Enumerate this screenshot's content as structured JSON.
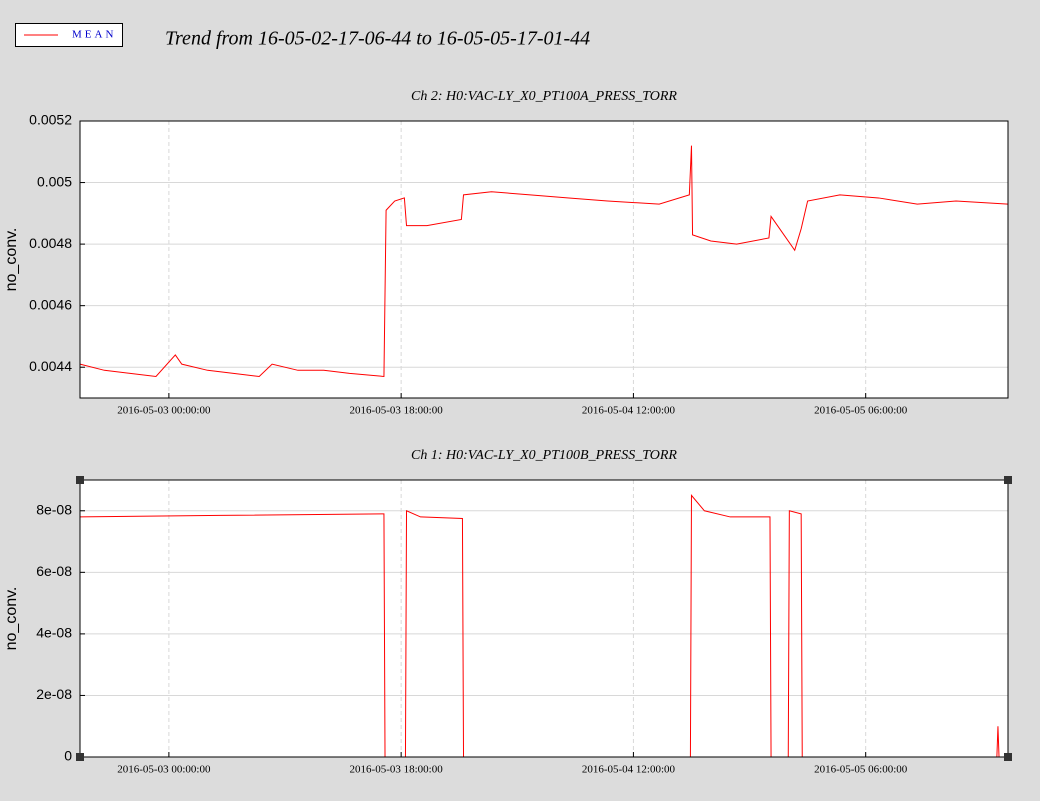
{
  "title": "Trend from 16-05-02-17-06-44 to 16-05-05-17-01-44",
  "legend": [
    {
      "name": "MEAN",
      "color": "#ff0000"
    }
  ],
  "chart_data": [
    {
      "type": "line",
      "title": "Ch 2: H0:VAC-LY_X0_PT100A_PRESS_TORR",
      "ylabel": "no_conv.",
      "grid": true,
      "xlim": [
        "2016-05-02 17:06:44",
        "2016-05-05 17:01:44"
      ],
      "xticks": [
        "2016-05-03 00:00:00",
        "2016-05-03 18:00:00",
        "2016-05-04 12:00:00",
        "2016-05-05 06:00:00"
      ],
      "ylim": [
        0.0043,
        0.0052
      ],
      "yticks": [
        0.0044,
        0.0046,
        0.0048,
        0.005,
        0.0052
      ],
      "x": [
        "2016-05-02 17:06:44",
        "2016-05-02 19:00:00",
        "2016-05-02 21:00:00",
        "2016-05-02 23:00:00",
        "2016-05-03 00:30:00",
        "2016-05-03 01:00:00",
        "2016-05-03 03:00:00",
        "2016-05-03 05:00:00",
        "2016-05-03 07:00:00",
        "2016-05-03 08:00:00",
        "2016-05-03 10:00:00",
        "2016-05-03 12:00:00",
        "2016-05-03 14:00:00",
        "2016-05-03 16:40:00",
        "2016-05-03 16:50:00",
        "2016-05-03 17:30:00",
        "2016-05-03 18:15:00",
        "2016-05-03 18:25:00",
        "2016-05-03 20:00:00",
        "2016-05-03 22:40:00",
        "2016-05-03 22:50:00",
        "2016-05-04 01:00:00",
        "2016-05-04 04:00:00",
        "2016-05-04 07:00:00",
        "2016-05-04 10:00:00",
        "2016-05-04 14:00:00",
        "2016-05-04 16:20:00",
        "2016-05-04 16:30:00",
        "2016-05-04 16:35:00",
        "2016-05-04 18:00:00",
        "2016-05-04 20:00:00",
        "2016-05-04 22:30:00",
        "2016-05-04 22:40:00",
        "2016-05-04 23:30:00",
        "2016-05-05 00:30:00",
        "2016-05-05 01:00:00",
        "2016-05-05 01:30:00",
        "2016-05-05 04:00:00",
        "2016-05-05 07:00:00",
        "2016-05-05 10:00:00",
        "2016-05-05 13:00:00",
        "2016-05-05 17:01:44"
      ],
      "series": [
        {
          "color": "#ff0000",
          "values": [
            0.00441,
            0.00439,
            0.00438,
            0.00437,
            0.00444,
            0.00441,
            0.00439,
            0.00438,
            0.00437,
            0.00441,
            0.00439,
            0.00439,
            0.00438,
            0.00437,
            0.00491,
            0.00494,
            0.00495,
            0.00486,
            0.00486,
            0.00488,
            0.00496,
            0.00497,
            0.00496,
            0.00495,
            0.00494,
            0.00493,
            0.00496,
            0.00512,
            0.00483,
            0.00481,
            0.0048,
            0.00482,
            0.00489,
            0.00484,
            0.00478,
            0.00485,
            0.00494,
            0.00496,
            0.00495,
            0.00493,
            0.00494,
            0.00493
          ]
        }
      ]
    },
    {
      "type": "line",
      "title": "Ch 1: H0:VAC-LY_X0_PT100B_PRESS_TORR",
      "ylabel": "no_conv.",
      "grid": true,
      "xlim": [
        "2016-05-02 17:06:44",
        "2016-05-05 17:01:44"
      ],
      "xticks": [
        "2016-05-03 00:00:00",
        "2016-05-03 18:00:00",
        "2016-05-04 12:00:00",
        "2016-05-05 06:00:00"
      ],
      "ylim": [
        0,
        9e-08
      ],
      "yticks": [
        0,
        {
          "value": 2e-08,
          "label": "2e-08"
        },
        {
          "value": 4e-08,
          "label": "4e-08"
        },
        {
          "value": 6e-08,
          "label": "6e-08"
        },
        {
          "value": 8e-08,
          "label": "8e-08"
        }
      ],
      "x": [
        "2016-05-02 17:06:44",
        "2016-05-03 04:00:00",
        "2016-05-03 16:40:00",
        "2016-05-03 16:45:00",
        "2016-05-03 18:20:00",
        "2016-05-03 18:25:00",
        "2016-05-03 19:30:00",
        "2016-05-03 22:45:00",
        "2016-05-03 22:50:00",
        "2016-05-04 16:25:00",
        "2016-05-04 16:30:00",
        "2016-05-04 17:30:00",
        "2016-05-04 19:30:00",
        "2016-05-04 22:35:00",
        "2016-05-04 22:40:00",
        "2016-05-05 00:00:00",
        "2016-05-05 00:05:00",
        "2016-05-05 01:00:00",
        "2016-05-05 01:05:00",
        "2016-05-05 16:10:00",
        "2016-05-05 16:15:00",
        "2016-05-05 16:20:00",
        "2016-05-05 17:01:44"
      ],
      "series": [
        {
          "color": "#ff0000",
          "values": [
            7.8e-08,
            7.85e-08,
            7.9e-08,
            0,
            0,
            8e-08,
            7.8e-08,
            7.75e-08,
            0,
            0,
            8.5e-08,
            8e-08,
            7.8e-08,
            7.8e-08,
            0,
            0,
            8e-08,
            7.9e-08,
            0,
            0,
            1e-08,
            0,
            0
          ]
        }
      ]
    }
  ]
}
